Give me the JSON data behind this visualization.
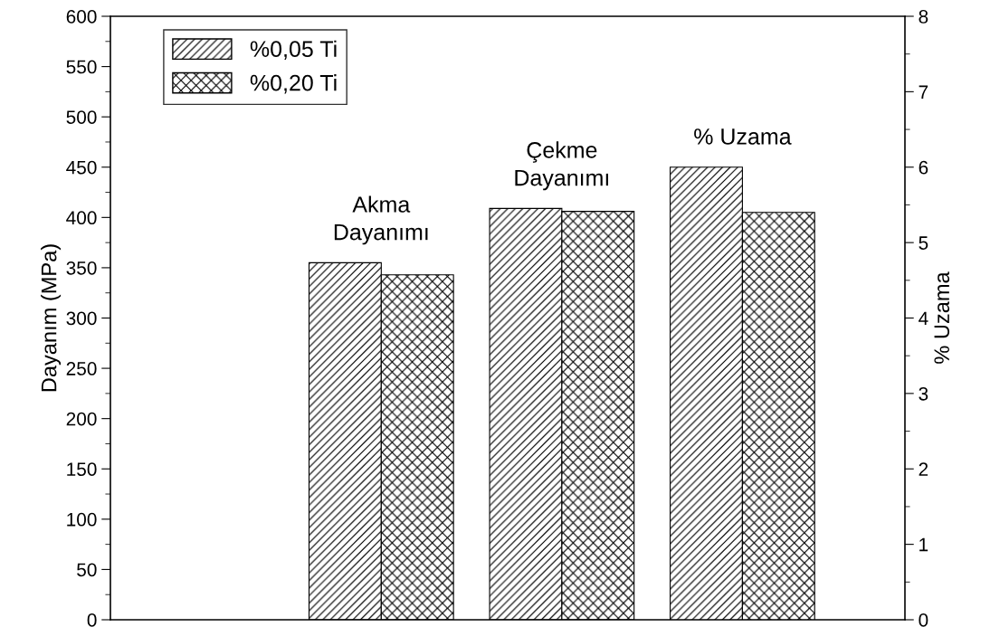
{
  "chart_data": {
    "type": "bar",
    "categories": [
      null,
      "Akma\nDayanımı",
      "Çekme\nDayanımı",
      "% Uzama"
    ],
    "ylabel": "Dayanım (MPa)",
    "y2label": "% Uzama",
    "series": [
      {
        "name": "%0,05 Ti",
        "color": "#000000",
        "values": [
          null,
          355,
          409,
          null
        ]
      },
      {
        "name": "%0,20 Ti",
        "color": "#000000",
        "values": [
          null,
          343,
          406,
          null
        ]
      },
      {
        "color": "#000000",
        "axis": "y2",
        "values": [
          null,
          null,
          null,
          6.0
        ]
      },
      {
        "color": "#000000",
        "axis": "y2",
        "values": [
          null,
          null,
          null,
          5.4
        ]
      }
    ],
    "ylim": [
      0,
      600
    ],
    "yticks": [
      0,
      50,
      100,
      150,
      200,
      250,
      300,
      350,
      400,
      450,
      500,
      550,
      600
    ],
    "y2lim": [
      0,
      8
    ],
    "y2ticks": [
      0,
      1,
      2,
      3,
      4,
      5,
      6,
      7,
      8
    ],
    "legend": "top left",
    "grid": false
  }
}
